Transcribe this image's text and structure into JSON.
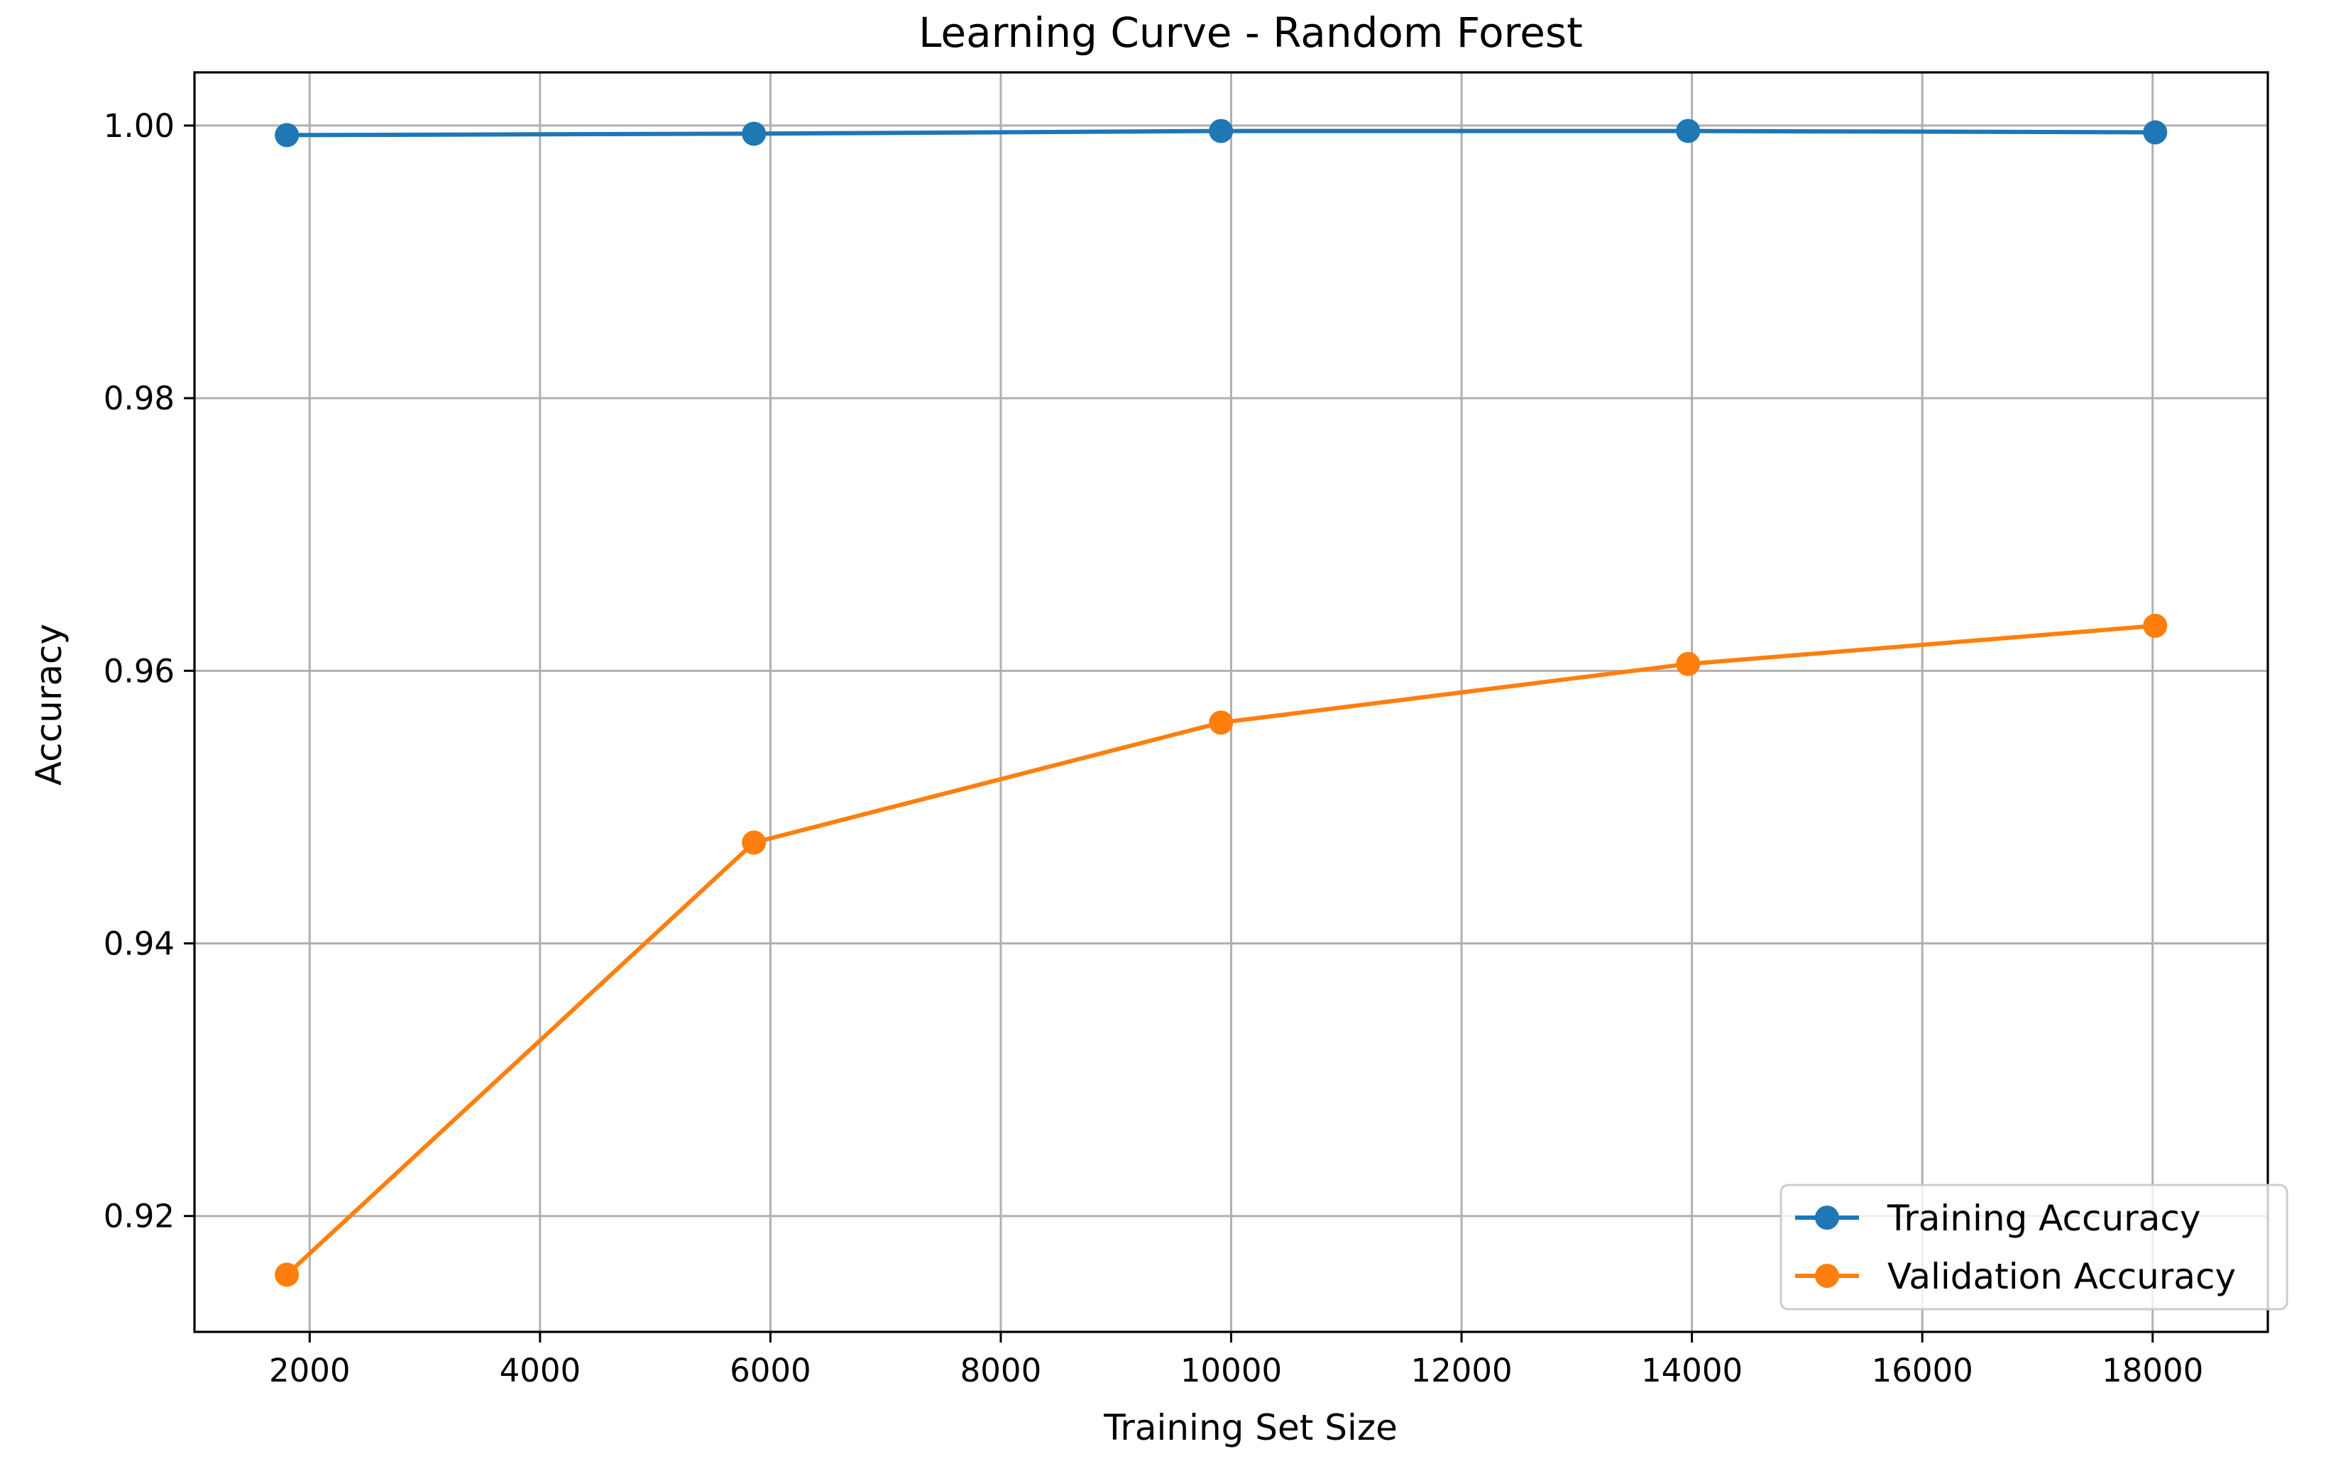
{
  "chart_data": {
    "type": "line",
    "title": "Learning Curve - Random Forest",
    "xlabel": "Training Set Size",
    "ylabel": "Accuracy",
    "xlim": [
      1000,
      19000
    ],
    "ylim": [
      0.9115,
      1.0039
    ],
    "xticks": [
      2000,
      4000,
      6000,
      8000,
      10000,
      12000,
      14000,
      16000,
      18000
    ],
    "yticks": [
      0.92,
      0.94,
      0.96,
      0.98,
      1.0
    ],
    "ytick_labels": [
      "0.92",
      "0.94",
      "0.96",
      "0.98",
      "1.00"
    ],
    "grid": true,
    "legend_position": "lower-right",
    "x": [
      1802,
      5857,
      9912,
      13967,
      18022
    ],
    "series": [
      {
        "name": "Training Accuracy",
        "color": "#1f77b4",
        "marker": "circle",
        "values": [
          0.9993,
          0.9994,
          0.9996,
          0.9996,
          0.9995
        ]
      },
      {
        "name": "Validation Accuracy",
        "color": "#ff7f0e",
        "marker": "circle",
        "values": [
          0.9157,
          0.9474,
          0.9562,
          0.9605,
          0.9633
        ]
      }
    ]
  }
}
